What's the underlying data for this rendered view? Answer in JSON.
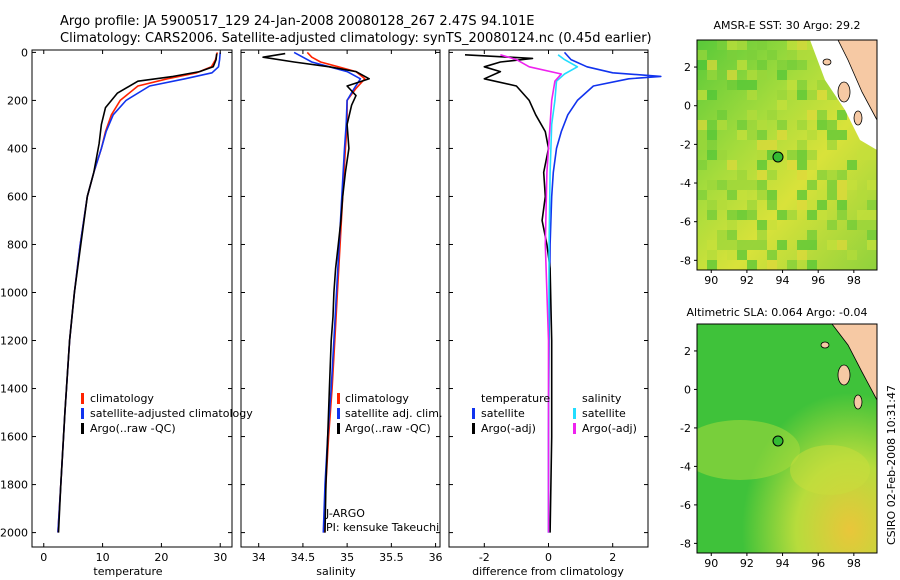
{
  "header": {
    "line1": "Argo profile: JA 5900517_129 24-Jan-2008 20080128_267 2.47S 94.101E",
    "line2": "Climatology: CARS2006. Satellite-adjusted climatology: synTS_20080124.nc (0.45d earlier)"
  },
  "colors": {
    "clim": "#ff2200",
    "sat": "#1133ee",
    "argo": "#000000",
    "sat_diff": "#22ddff",
    "argo_adj": "#ee22ee"
  },
  "chart_data": [
    {
      "type": "line",
      "name": "temperature",
      "xlabel": "temperature",
      "ylabel": "",
      "xlim": [
        -2,
        32
      ],
      "ylim": [
        2060,
        -10
      ],
      "xticks": [
        "0",
        "10",
        "20",
        "30"
      ],
      "xtickvals": [
        0,
        10,
        20,
        30
      ],
      "yticks": [
        "0",
        "200",
        "400",
        "600",
        "800",
        "1000",
        "1200",
        "1400",
        "1600",
        "1800",
        "2000"
      ],
      "ytickvals": [
        0,
        200,
        400,
        600,
        800,
        1000,
        1200,
        1400,
        1600,
        1800,
        2000
      ],
      "legend": [
        "climatology",
        "satellite-adjusted climatology",
        "Argo(..raw -QC)"
      ],
      "series": [
        {
          "name": "climatology",
          "color": "clim",
          "x": [
            29.5,
            29.2,
            28.5,
            26,
            21,
            16,
            13,
            11.5,
            10.5,
            9.8,
            8.5,
            7.4,
            6.2,
            5.2,
            4.4,
            3.6,
            2.9,
            2.4
          ],
          "y": [
            0,
            30,
            60,
            85,
            110,
            140,
            200,
            260,
            330,
            400,
            500,
            600,
            800,
            1000,
            1200,
            1500,
            1800,
            2000
          ]
        },
        {
          "name": "satellite-adjusted climatology",
          "color": "sat",
          "x": [
            30,
            29.9,
            29.7,
            28.6,
            24,
            18,
            14,
            11.8,
            10.6,
            9.8,
            8.5,
            7.4,
            6.2,
            5.2,
            4.4,
            3.6,
            2.9,
            2.4
          ],
          "y": [
            0,
            30,
            60,
            85,
            110,
            140,
            200,
            260,
            330,
            400,
            500,
            600,
            800,
            1000,
            1200,
            1500,
            1800,
            2000
          ]
        },
        {
          "name": "Argo(..raw -QC)",
          "color": "argo",
          "x": [
            29.4,
            29.3,
            28.8,
            26.5,
            22,
            16,
            12.5,
            10.5,
            9.8,
            9.4,
            8.5,
            7.4,
            6.3,
            5.2,
            4.4,
            3.6,
            2.9,
            2.5
          ],
          "y": [
            5,
            30,
            60,
            80,
            100,
            120,
            170,
            230,
            300,
            380,
            500,
            600,
            800,
            1000,
            1200,
            1500,
            1800,
            2000
          ]
        }
      ]
    },
    {
      "type": "line",
      "name": "salinity",
      "xlabel": "salinity",
      "ylabel": "",
      "xlim": [
        33.8,
        36.05
      ],
      "ylim": [
        2060,
        -10
      ],
      "xticks": [
        "34",
        "34.5",
        "35",
        "35.5",
        "36"
      ],
      "xtickvals": [
        34,
        34.5,
        35,
        35.5,
        36
      ],
      "legend": [
        "climatology",
        "satellite adj. clim.",
        "Argo(..raw -QC)"
      ],
      "annotation": [
        "J-ARGO",
        "PI: kensuke Takeuchi"
      ],
      "series": [
        {
          "name": "climatology",
          "color": "clim",
          "x": [
            34.55,
            34.6,
            34.7,
            34.9,
            35.1,
            35.2,
            35.1,
            35.0,
            35.0,
            34.98,
            34.95,
            34.92,
            34.89,
            34.86,
            34.83,
            34.79,
            34.76,
            34.74
          ],
          "y": [
            0,
            20,
            40,
            60,
            80,
            110,
            150,
            200,
            300,
            400,
            600,
            800,
            1000,
            1200,
            1400,
            1600,
            1800,
            2000
          ]
        },
        {
          "name": "satellite adj. clim.",
          "color": "sat",
          "x": [
            34.4,
            34.5,
            34.6,
            34.8,
            35.0,
            35.15,
            35.08,
            35.0,
            34.99,
            34.97,
            34.94,
            34.91,
            34.88,
            34.85,
            34.82,
            34.78,
            34.75,
            34.73
          ],
          "y": [
            0,
            20,
            40,
            60,
            80,
            110,
            150,
            200,
            300,
            400,
            600,
            800,
            1000,
            1200,
            1400,
            1600,
            1800,
            2000
          ]
        },
        {
          "name": "Argo(..raw -QC)",
          "color": "argo",
          "x": [
            34.3,
            34.05,
            34.4,
            34.8,
            35.1,
            35.25,
            35.0,
            35.1,
            35.05,
            35.0,
            35.02,
            34.98,
            34.95,
            34.93,
            34.9,
            34.87,
            34.85,
            34.84,
            34.82,
            34.8,
            34.78,
            34.76,
            34.75
          ],
          "y": [
            5,
            20,
            40,
            60,
            80,
            110,
            140,
            180,
            220,
            300,
            400,
            500,
            600,
            700,
            800,
            900,
            1000,
            1100,
            1200,
            1400,
            1600,
            1800,
            2000
          ]
        }
      ]
    },
    {
      "type": "line",
      "name": "difference",
      "xlabel": "difference from climatology",
      "ylabel": "",
      "xlim": [
        -3.1,
        3.1
      ],
      "ylim": [
        2060,
        -10
      ],
      "xticks": [
        "-2",
        "0",
        "2"
      ],
      "xtickvals": [
        -2,
        0,
        2
      ],
      "legend": [
        "temperature",
        "satellite",
        "Argo(-adj)",
        "salinity",
        "satellite",
        "Argo(-adj)"
      ],
      "series": [
        {
          "name": "temperature satellite",
          "color": "sat",
          "x": [
            0.5,
            0.7,
            1.2,
            2.0,
            3.5,
            2.5,
            1.4,
            0.9,
            0.6,
            0.4,
            0.25,
            0.15,
            0.1,
            0.05,
            0.02,
            0,
            0
          ],
          "y": [
            0,
            30,
            60,
            85,
            100,
            110,
            140,
            200,
            260,
            330,
            400,
            500,
            600,
            800,
            1200,
            1600,
            2000
          ]
        },
        {
          "name": "temperature Argo(-adj)",
          "color": "argo",
          "x": [
            -2.6,
            -0.5,
            -1.5,
            -2.0,
            -1.5,
            -2.0,
            -1.0,
            -0.6,
            -0.4,
            -0.1,
            0,
            -0.15,
            -0.1,
            -0.2,
            -0.05,
            0.05,
            0.1,
            0.1,
            0.05
          ],
          "y": [
            10,
            25,
            40,
            60,
            80,
            110,
            140,
            200,
            260,
            330,
            400,
            500,
            600,
            700,
            800,
            900,
            1200,
            1600,
            2000
          ]
        },
        {
          "name": "salinity satellite",
          "color": "sat_diff",
          "x": [
            0.3,
            0.5,
            0.9,
            0.5,
            0.25,
            0.2,
            0.1,
            0.05,
            0.02,
            0.01,
            0.0,
            0.0
          ],
          "y": [
            10,
            30,
            60,
            90,
            120,
            200,
            300,
            500,
            800,
            1200,
            1600,
            2000
          ]
        },
        {
          "name": "salinity Argo(-adj)",
          "color": "argo_adj",
          "x": [
            -1.5,
            -1.0,
            -0.6,
            0.4,
            0.2,
            0.1,
            0.05,
            -0.05,
            -0.1,
            0,
            0,
            0
          ],
          "y": [
            10,
            30,
            60,
            90,
            120,
            200,
            300,
            500,
            800,
            1200,
            1600,
            2000
          ]
        }
      ]
    }
  ],
  "maps": [
    {
      "title": "AMSR-E SST: 30 Argo: 29.2",
      "xticks": [
        "90",
        "92",
        "94",
        "96",
        "98"
      ],
      "yticks": [
        "2",
        "0",
        "-2",
        "-4",
        "-6",
        "-8"
      ]
    },
    {
      "title": "Altimetric SLA: 0.064 Argo: -0.04",
      "xticks": [
        "90",
        "92",
        "94",
        "96",
        "98"
      ],
      "yticks": [
        "2",
        "0",
        "-2",
        "-4",
        "-6",
        "-8"
      ]
    }
  ],
  "credit": "CSIRO 02-Feb-2008 10:31:47"
}
